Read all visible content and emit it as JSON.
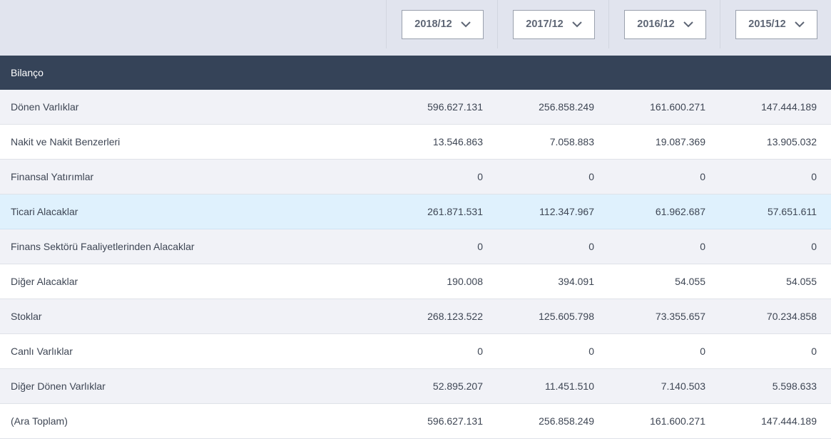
{
  "periods": [
    {
      "label": "2018/12",
      "icon": "chevron-down-icon"
    },
    {
      "label": "2017/12",
      "icon": "chevron-down-icon"
    },
    {
      "label": "2016/12",
      "icon": "chevron-down-icon"
    },
    {
      "label": "2015/12",
      "icon": "chevron-down-icon"
    }
  ],
  "section": {
    "title": "Bilanço"
  },
  "rows": [
    {
      "label": "Dönen Varlıklar",
      "values": [
        "596.627.131",
        "256.858.249",
        "161.600.271",
        "147.444.189"
      ]
    },
    {
      "label": "Nakit ve Nakit Benzerleri",
      "values": [
        "13.546.863",
        "7.058.883",
        "19.087.369",
        "13.905.032"
      ]
    },
    {
      "label": "Finansal Yatırımlar",
      "values": [
        "0",
        "0",
        "0",
        "0"
      ]
    },
    {
      "label": "Ticari Alacaklar",
      "values": [
        "261.871.531",
        "112.347.967",
        "61.962.687",
        "57.651.611"
      ]
    },
    {
      "label": "Finans Sektörü Faaliyetlerinden Alacaklar",
      "values": [
        "0",
        "0",
        "0",
        "0"
      ]
    },
    {
      "label": "Diğer Alacaklar",
      "values": [
        "190.008",
        "394.091",
        "54.055",
        "54.055"
      ]
    },
    {
      "label": "Stoklar",
      "values": [
        "268.123.522",
        "125.605.798",
        "73.355.657",
        "70.234.858"
      ]
    },
    {
      "label": "Canlı Varlıklar",
      "values": [
        "0",
        "0",
        "0",
        "0"
      ]
    },
    {
      "label": "Diğer Dönen Varlıklar",
      "values": [
        "52.895.207",
        "11.451.510",
        "7.140.503",
        "5.598.633"
      ]
    },
    {
      "label": "(Ara Toplam)",
      "values": [
        "596.627.131",
        "256.858.249",
        "161.600.271",
        "147.444.189"
      ]
    }
  ],
  "colors": {
    "header_bg": "#e1e4ee",
    "section_bg": "#354358",
    "row_alt": "#f1f2f7",
    "row_highlight": "#dff1fd"
  }
}
